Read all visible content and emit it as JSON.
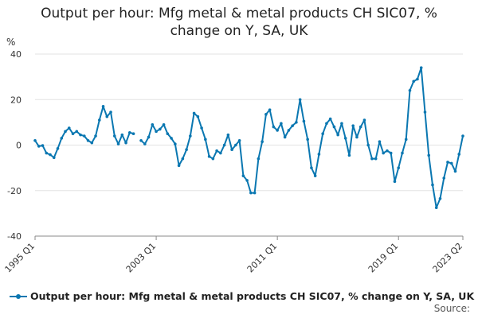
{
  "chart_data": {
    "type": "line",
    "title_line1": "Output per hour: Mfg metal & metal products CH SIC07, %",
    "title_line2": "change on Y, SA, UK",
    "ylabel": "%",
    "ylim": [
      -40,
      40
    ],
    "yticks": [
      40,
      20,
      0,
      -20,
      -40
    ],
    "xtick_labels": [
      "1995 Q1",
      "2003 Q1",
      "2011 Q1",
      "2019 Q1",
      "2023 Q2"
    ],
    "xtick_index": [
      0,
      32,
      64,
      96,
      113
    ],
    "grid": true,
    "legend_position": "bottom",
    "series": [
      {
        "name": "Output per hour: Mfg metal & metal products CH SIC07, % change on Y, SA, UK",
        "color": "#0a77b1",
        "start": "1995 Q1",
        "frequency": "quarterly",
        "values": [
          2,
          -0.5,
          -0.2,
          -3.5,
          -4.2,
          -5.5,
          -1.5,
          3,
          6,
          7.5,
          5,
          6,
          4.5,
          4,
          2,
          1,
          4,
          11,
          17,
          12.5,
          14.5,
          4,
          0.5,
          4.5,
          1,
          5.5,
          5,
          null,
          2,
          0.5,
          3.5,
          9,
          6,
          7,
          9,
          5,
          3,
          0.5,
          -9,
          -6,
          -2,
          4,
          14,
          12.5,
          7.5,
          2.5,
          -5,
          -6,
          -2.5,
          -3.5,
          0,
          4.5,
          -2,
          0,
          2,
          -13.5,
          -15.5,
          -21,
          -21,
          -6,
          1.5,
          13.5,
          15.5,
          8,
          6.5,
          9.5,
          3.5,
          6.5,
          8.5,
          10,
          20,
          10.5,
          2.5,
          -10,
          -13.5,
          -4,
          5,
          9.5,
          11.5,
          8,
          4.5,
          9.5,
          3,
          -4.5,
          8.5,
          3.5,
          8,
          11,
          0,
          -6,
          -6,
          1.5,
          -3.5,
          -2.5,
          -3.5,
          -16,
          -10,
          -3.5,
          2.5,
          24,
          28,
          29,
          34,
          14.5,
          -4.5,
          -17.5,
          -27.5,
          -23.5,
          -14.5,
          -7.5,
          -8,
          -11.5,
          -4,
          4
        ]
      }
    ],
    "source_label": "Source:"
  }
}
